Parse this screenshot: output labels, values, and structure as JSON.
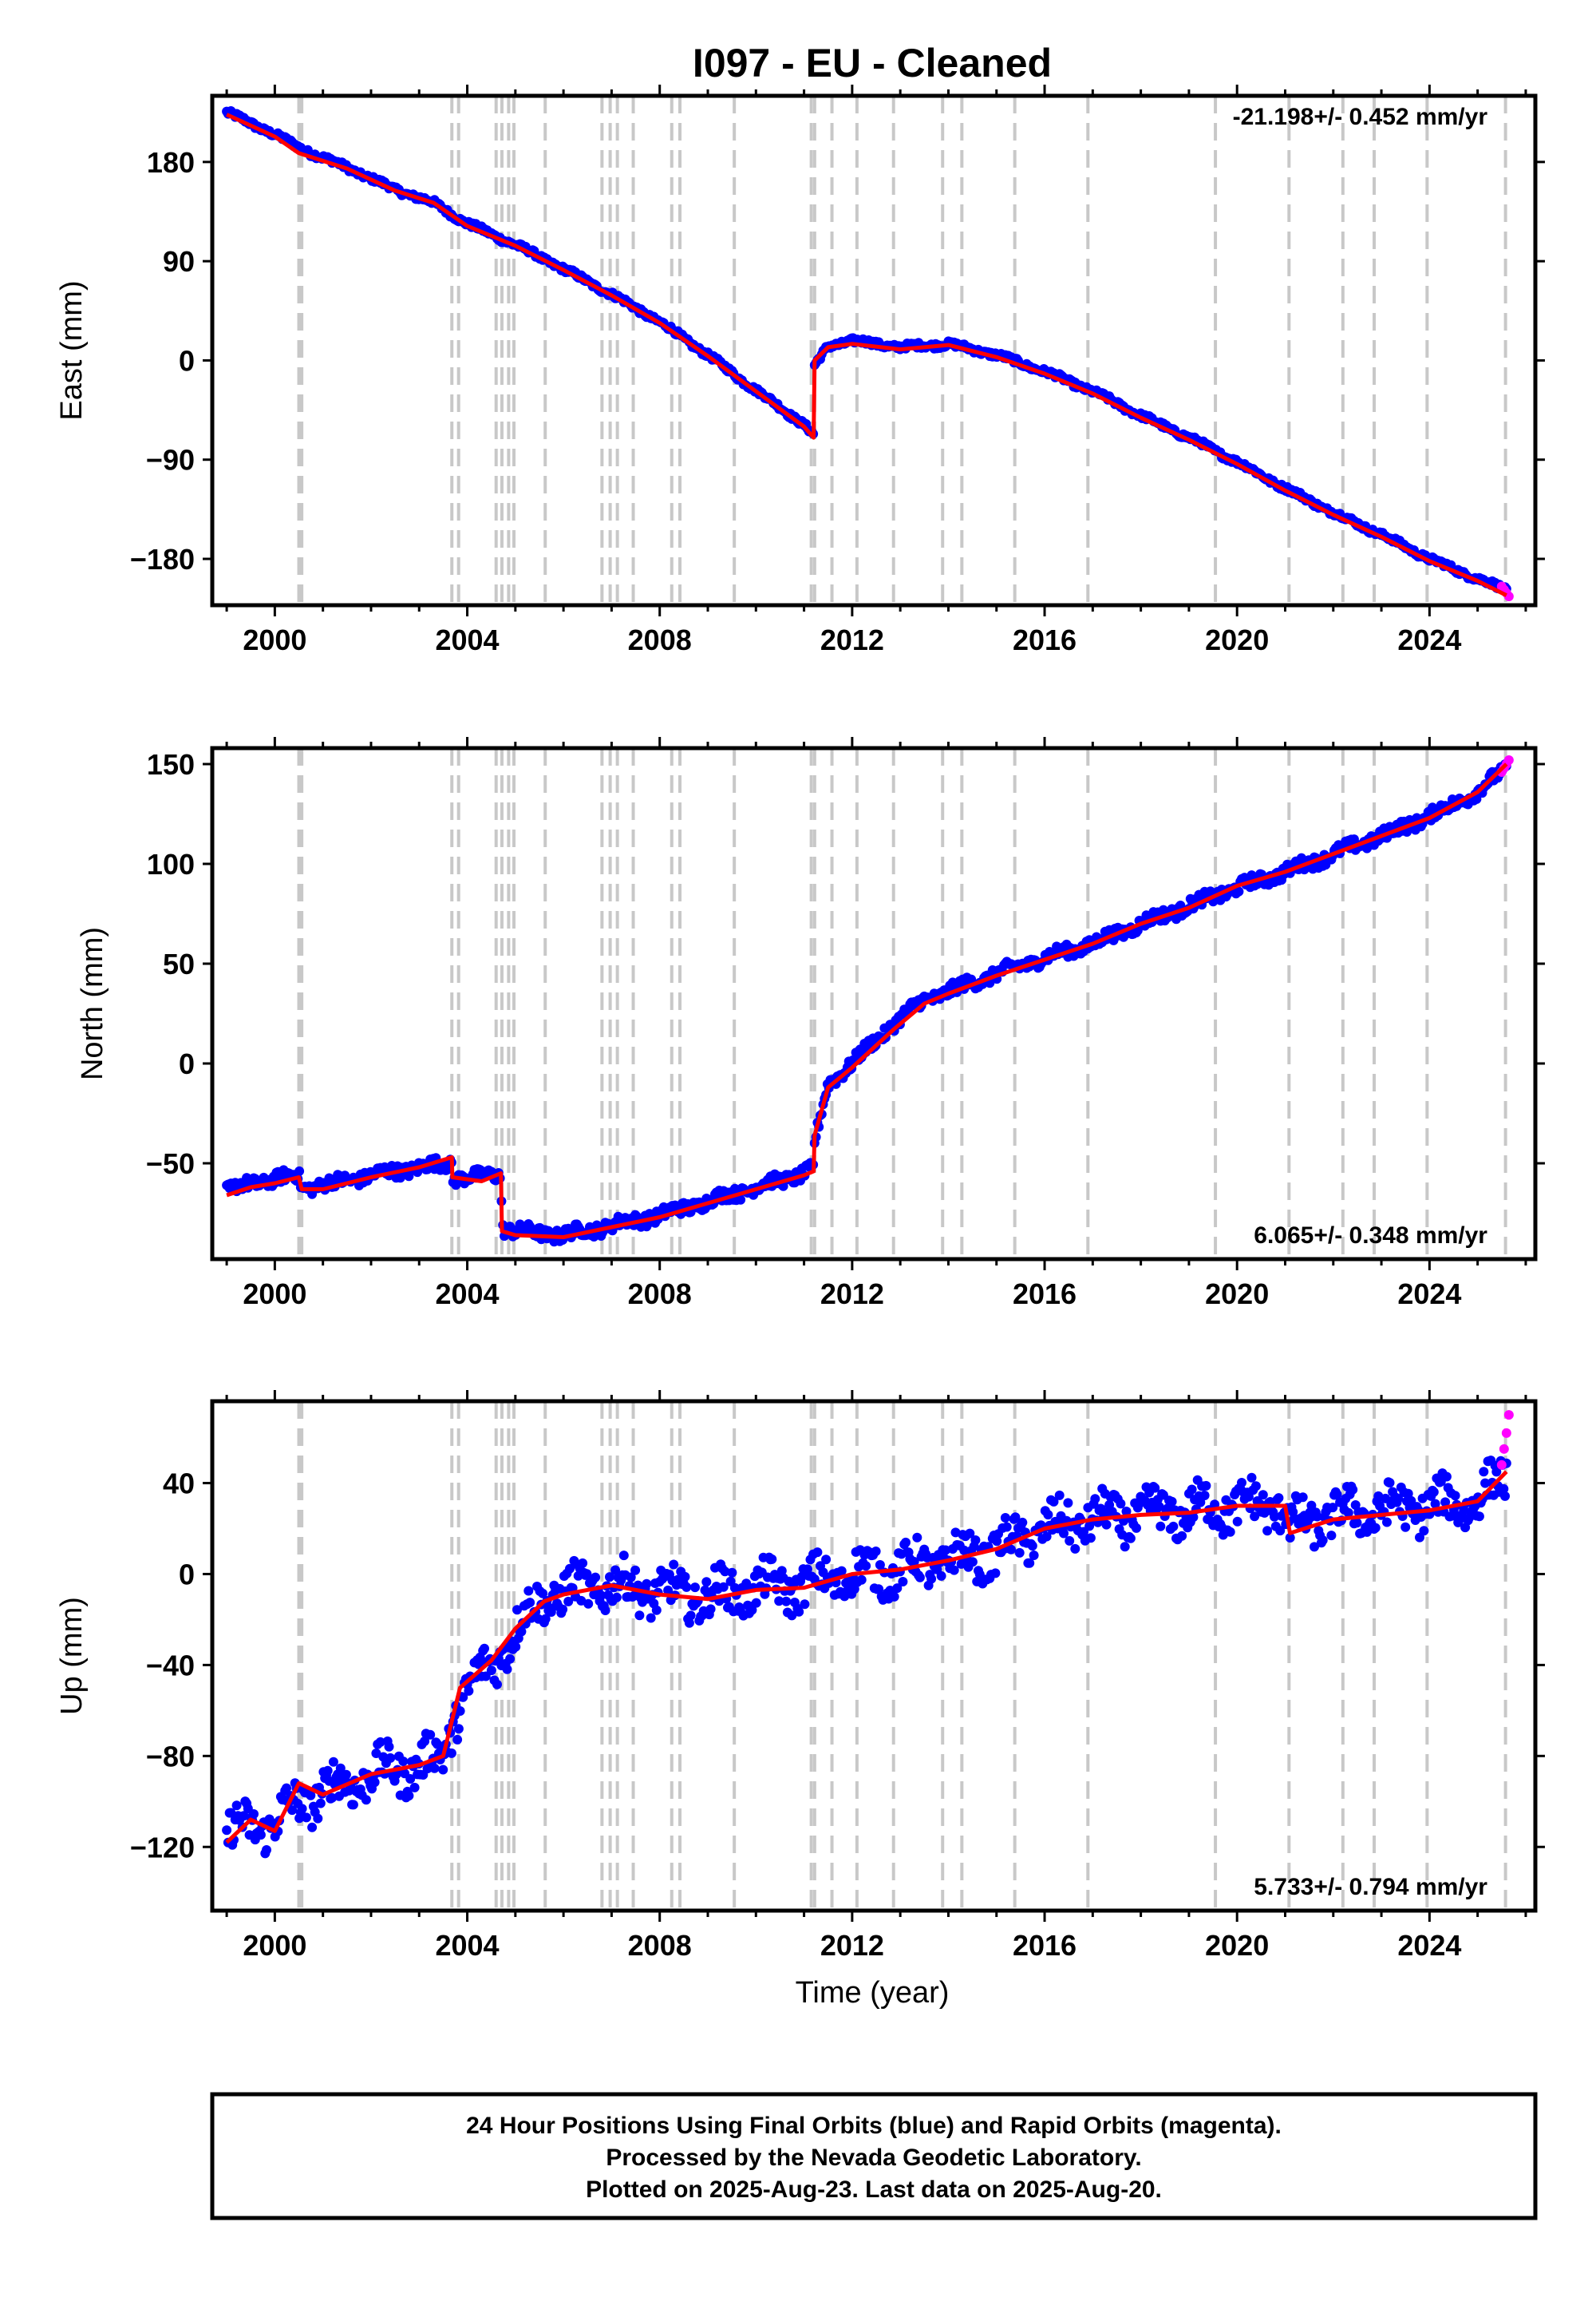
{
  "title": "I097  - EU - Cleaned",
  "colors": {
    "final_orbits": "#0000ff",
    "rapid_orbits": "#ff00ff",
    "model": "#ff0000",
    "event_lines": "#c8c8c8",
    "frame": "#000000"
  },
  "shared_x_ticks": [
    "2000",
    "2004",
    "2008",
    "2012",
    "2016",
    "2020",
    "2024"
  ],
  "event_lines_years": [
    2000.5,
    2000.56,
    2003.68,
    2003.82,
    2004.6,
    2004.72,
    2004.86,
    2004.97,
    2005.62,
    2006.8,
    2006.97,
    2007.12,
    2007.45,
    2008.25,
    2008.42,
    2009.55,
    2011.15,
    2011.22,
    2011.58,
    2012.1,
    2012.86,
    2013.88,
    2014.28,
    2015.38,
    2016.9,
    2019.55,
    2021.08,
    2022.2,
    2022.85,
    2023.95,
    2025.58
  ],
  "chart_data": [
    {
      "type": "scatter",
      "panel": "east",
      "ylabel": "East (mm)",
      "xlabel": "",
      "rate_label": "-21.198+/- 0.452 mm/yr",
      "rate_position": "top-right",
      "xlim": [
        1998.7,
        2026.2
      ],
      "ylim": [
        -222,
        240
      ],
      "y_ticks": [
        "180",
        "90",
        "0",
        "−90",
        "−180"
      ],
      "grid": false,
      "x": [
        1999.0,
        2000.0,
        2000.5,
        2001.5,
        2002.5,
        2003.3,
        2004.0,
        2005.0,
        2006.0,
        2007.0,
        2008.0,
        2009.0,
        2010.0,
        2011.0,
        2011.2,
        2011.22,
        2011.5,
        2012.0,
        2013.0,
        2014.0,
        2015.0,
        2016.0,
        2017.0,
        2018.0,
        2019.0,
        2020.0,
        2021.0,
        2022.0,
        2023.0,
        2024.0,
        2025.0,
        2025.6
      ],
      "series": [
        {
          "name": "Final Orbits",
          "values": [
            225,
            205,
            193,
            175,
            155,
            143,
            124,
            105,
            83,
            60,
            35,
            5,
            -27,
            -58,
            -68,
            -5,
            13,
            18,
            12,
            15,
            5,
            -10,
            -28,
            -50,
            -70,
            -92,
            -116,
            -138,
            -158,
            -180,
            -198,
            -208
          ]
        },
        {
          "name": "Model",
          "values": [
            223,
            203,
            188,
            174,
            154,
            143,
            122,
            104,
            82,
            59,
            34,
            4,
            -28,
            -60,
            -70,
            0,
            12,
            15,
            10,
            14,
            3,
            -12,
            -30,
            -52,
            -72,
            -94,
            -118,
            -140,
            -160,
            -182,
            -200,
            -213
          ]
        }
      ],
      "rapid_points": {
        "x": [
          2025.5,
          2025.55,
          2025.6,
          2025.65
        ],
        "y": [
          -205,
          -208,
          -211,
          -214
        ]
      }
    },
    {
      "type": "scatter",
      "panel": "north",
      "ylabel": "North (mm)",
      "xlabel": "",
      "rate_label": "6.065+/- 0.348 mm/yr",
      "rate_position": "bottom-right",
      "xlim": [
        1998.7,
        2026.2
      ],
      "ylim": [
        -98,
        158
      ],
      "y_ticks": [
        "150",
        "100",
        "50",
        "0",
        "−50"
      ],
      "grid": false,
      "x": [
        1999.0,
        1999.5,
        2000.0,
        2000.5,
        2000.56,
        2001.0,
        2002.0,
        2003.0,
        2003.68,
        2003.69,
        2004.3,
        2004.7,
        2004.72,
        2005.0,
        2006.0,
        2007.0,
        2008.0,
        2009.0,
        2010.0,
        2011.0,
        2011.2,
        2011.22,
        2011.5,
        2012.0,
        2012.86,
        2013.5,
        2014.0,
        2015.0,
        2016.0,
        2017.0,
        2018.0,
        2019.0,
        2020.0,
        2021.0,
        2022.0,
        2023.0,
        2024.0,
        2025.0,
        2025.6
      ],
      "series": [
        {
          "name": "Final Orbits",
          "values": [
            -64,
            -60,
            -58,
            -56,
            -62,
            -61,
            -56,
            -52,
            -50,
            -57,
            -57,
            -55,
            -82,
            -84,
            -86,
            -81,
            -76,
            -69,
            -62,
            -55,
            -53,
            -40,
            -10,
            0,
            20,
            32,
            36,
            45,
            53,
            60,
            70,
            79,
            88,
            96,
            105,
            114,
            124,
            136,
            148
          ]
        },
        {
          "name": "Model",
          "values": [
            -66,
            -62,
            -60,
            -57,
            -63,
            -63,
            -57,
            -52,
            -47,
            -57,
            -59,
            -55,
            -84,
            -86,
            -87,
            -82,
            -77,
            -70,
            -63,
            -56,
            -54,
            -36,
            -12,
            -2,
            17,
            30,
            35,
            44,
            52,
            60,
            70,
            78,
            89,
            96,
            105,
            114,
            123,
            136,
            150
          ]
        }
      ],
      "rapid_points": {
        "x": [
          2025.5,
          2025.55,
          2025.6,
          2025.65
        ],
        "y": [
          146,
          148,
          150,
          152
        ]
      }
    },
    {
      "type": "scatter",
      "panel": "up",
      "ylabel": "Up (mm)",
      "xlabel": "Time (year)",
      "rate_label": "5.733+/- 0.794 mm/yr",
      "rate_position": "bottom-right",
      "xlim": [
        1998.7,
        2026.2
      ],
      "ylim": [
        -148,
        76
      ],
      "y_ticks": [
        "40",
        "0",
        "−40",
        "−80",
        "−120"
      ],
      "grid": false,
      "x": [
        1999.0,
        1999.5,
        2000.0,
        2000.5,
        2001.0,
        2002.0,
        2003.0,
        2003.5,
        2003.85,
        2004.5,
        2005.0,
        2005.6,
        2006.0,
        2007.0,
        2008.0,
        2009.0,
        2010.0,
        2011.0,
        2012.0,
        2013.0,
        2014.0,
        2015.0,
        2016.0,
        2017.0,
        2018.0,
        2019.0,
        2020.0,
        2021.0,
        2021.1,
        2022.0,
        2023.0,
        2024.0,
        2025.0,
        2025.6
      ],
      "series": [
        {
          "name": "Final Orbits",
          "values": [
            -115,
            -110,
            -110,
            -100,
            -96,
            -88,
            -84,
            -80,
            -55,
            -40,
            -25,
            -10,
            -8,
            -5,
            -8,
            -10,
            -6,
            -5,
            0,
            2,
            6,
            10,
            20,
            24,
            26,
            28,
            30,
            30,
            20,
            26,
            28,
            30,
            32,
            44
          ]
        },
        {
          "name": "Model",
          "values": [
            -118,
            -108,
            -113,
            -92,
            -97,
            -88,
            -84,
            -80,
            -50,
            -38,
            -24,
            -12,
            -9,
            -5,
            -9,
            -11,
            -7,
            -6,
            0,
            2,
            6,
            11,
            20,
            24,
            26,
            27,
            30,
            30,
            18,
            24,
            26,
            28,
            32,
            45
          ]
        }
      ],
      "rapid_points": {
        "x": [
          2025.5,
          2025.55,
          2025.6,
          2025.65
        ],
        "y": [
          48,
          55,
          62,
          70
        ]
      }
    }
  ],
  "footer": {
    "line1": "24 Hour Positions Using Final Orbits (blue) and Rapid Orbits (magenta).",
    "line2": "Processed by the Nevada Geodetic Laboratory.",
    "line3": "Plotted on 2025-Aug-23. Last data on 2025-Aug-20."
  }
}
